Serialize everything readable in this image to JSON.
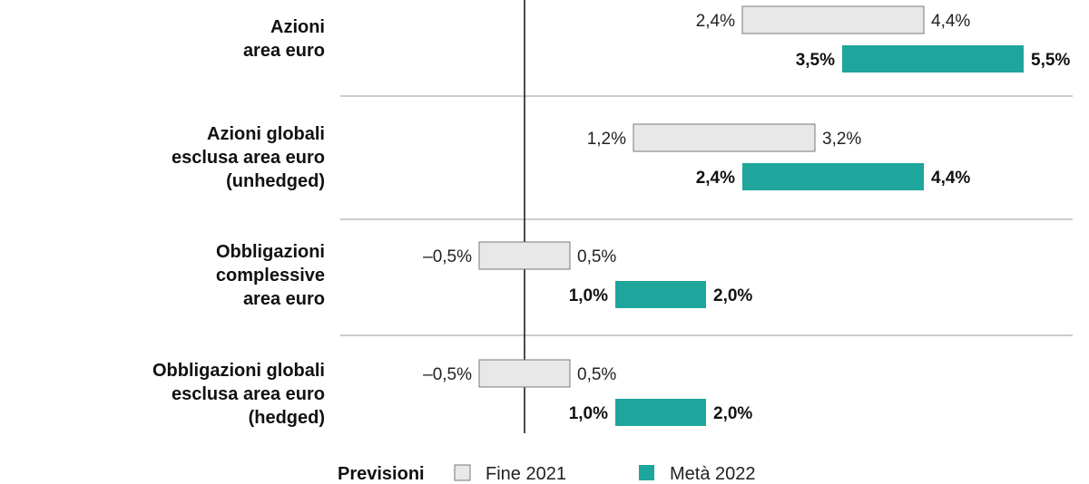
{
  "chart_data": {
    "type": "bar",
    "orientation": "horizontal-range",
    "categories": [
      [
        "Azioni",
        "area euro"
      ],
      [
        "Azioni globali",
        "esclusa area euro",
        "(unhedged)"
      ],
      [
        "Obbligazioni",
        "complessive",
        "area euro"
      ],
      [
        "Obbligazioni globali",
        "esclusa area euro",
        "(hedged)"
      ]
    ],
    "series": [
      {
        "name": "Fine 2021",
        "color": "#e8e8e8",
        "low": [
          2.4,
          1.2,
          -0.5,
          -0.5
        ],
        "high": [
          4.4,
          3.2,
          0.5,
          0.5
        ],
        "low_labels": [
          "2,4%",
          "1,2%",
          "–0,5%",
          "–0,5%"
        ],
        "high_labels": [
          "4,4%",
          "3,2%",
          "0,5%",
          "0,5%"
        ]
      },
      {
        "name": "Metà 2022",
        "color": "#1ea59c",
        "low": [
          3.5,
          2.4,
          1.0,
          1.0
        ],
        "high": [
          5.5,
          4.4,
          2.0,
          2.0
        ],
        "low_labels": [
          "3,5%",
          "2,4%",
          "1,0%",
          "1,0%"
        ],
        "high_labels": [
          "5,5%",
          "4,4%",
          "2,0%",
          "2,0%"
        ]
      }
    ],
    "legend": {
      "title": "Previsioni",
      "placement": "bottom"
    },
    "xlim": [
      -1,
      6
    ]
  }
}
